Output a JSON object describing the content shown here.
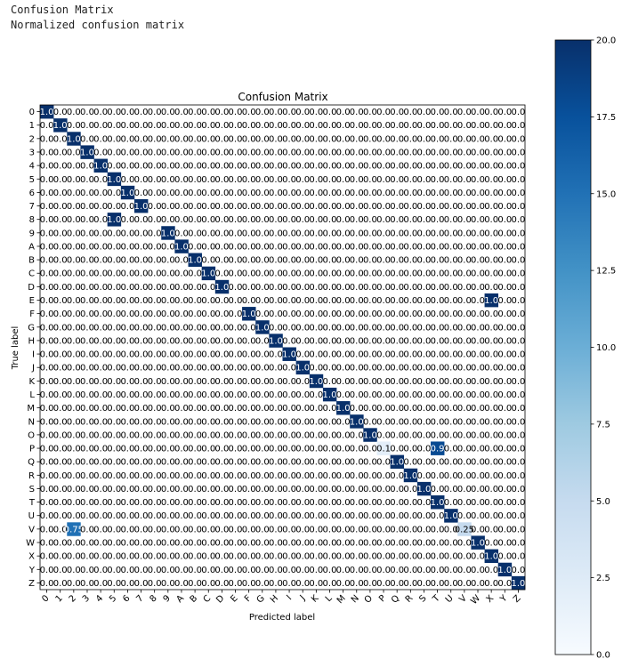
{
  "console": {
    "line1": "Confusion Matrix",
    "line2": "Normalized confusion matrix"
  },
  "chart_data": {
    "type": "heatmap",
    "title": "Confusion Matrix",
    "xlabel": "Predicted label",
    "ylabel": "True label",
    "labels": [
      "0",
      "1",
      "2",
      "3",
      "4",
      "5",
      "6",
      "7",
      "8",
      "9",
      "A",
      "B",
      "C",
      "D",
      "E",
      "F",
      "G",
      "H",
      "I",
      "J",
      "K",
      "L",
      "M",
      "N",
      "O",
      "P",
      "Q",
      "R",
      "S",
      "T",
      "U",
      "V",
      "W",
      "X",
      "Y",
      "Z"
    ],
    "default_cell_text": "0.0",
    "nonzero_cells": [
      {
        "row": 0,
        "col": 0,
        "value": 1.0,
        "text": "1.0"
      },
      {
        "row": 1,
        "col": 1,
        "value": 1.0,
        "text": "1.0"
      },
      {
        "row": 2,
        "col": 2,
        "value": 1.0,
        "text": "1.0"
      },
      {
        "row": 3,
        "col": 3,
        "value": 1.0,
        "text": "1.0"
      },
      {
        "row": 4,
        "col": 4,
        "value": 1.0,
        "text": "1.0"
      },
      {
        "row": 5,
        "col": 5,
        "value": 1.0,
        "text": "1.0"
      },
      {
        "row": 6,
        "col": 6,
        "value": 1.0,
        "text": "1.0"
      },
      {
        "row": 7,
        "col": 7,
        "value": 1.0,
        "text": "1.0"
      },
      {
        "row": 8,
        "col": 5,
        "value": 1.0,
        "text": "1.0"
      },
      {
        "row": 9,
        "col": 9,
        "value": 1.0,
        "text": "1.0"
      },
      {
        "row": 10,
        "col": 10,
        "value": 1.0,
        "text": "1.0"
      },
      {
        "row": 11,
        "col": 11,
        "value": 1.0,
        "text": "1.0"
      },
      {
        "row": 12,
        "col": 12,
        "value": 1.0,
        "text": "1.0"
      },
      {
        "row": 13,
        "col": 13,
        "value": 1.0,
        "text": "1.0"
      },
      {
        "row": 14,
        "col": 33,
        "value": 1.0,
        "text": "1.0"
      },
      {
        "row": 15,
        "col": 15,
        "value": 1.0,
        "text": "1.0"
      },
      {
        "row": 16,
        "col": 16,
        "value": 1.0,
        "text": "1.0"
      },
      {
        "row": 17,
        "col": 17,
        "value": 1.0,
        "text": "1.0"
      },
      {
        "row": 18,
        "col": 18,
        "value": 1.0,
        "text": "1.0"
      },
      {
        "row": 19,
        "col": 19,
        "value": 1.0,
        "text": "1.0"
      },
      {
        "row": 20,
        "col": 20,
        "value": 1.0,
        "text": "1.0"
      },
      {
        "row": 21,
        "col": 21,
        "value": 1.0,
        "text": "1.0"
      },
      {
        "row": 22,
        "col": 22,
        "value": 1.0,
        "text": "1.0"
      },
      {
        "row": 23,
        "col": 23,
        "value": 1.0,
        "text": "1.0"
      },
      {
        "row": 24,
        "col": 24,
        "value": 1.0,
        "text": "1.0"
      },
      {
        "row": 25,
        "col": 25,
        "value": 0.1,
        "text": "0.1"
      },
      {
        "row": 25,
        "col": 29,
        "value": 0.9,
        "text": "0.9"
      },
      {
        "row": 26,
        "col": 26,
        "value": 1.0,
        "text": "1.0"
      },
      {
        "row": 27,
        "col": 27,
        "value": 1.0,
        "text": "1.0"
      },
      {
        "row": 28,
        "col": 28,
        "value": 1.0,
        "text": "1.0"
      },
      {
        "row": 29,
        "col": 29,
        "value": 1.0,
        "text": "1.0"
      },
      {
        "row": 30,
        "col": 30,
        "value": 1.0,
        "text": "1.0"
      },
      {
        "row": 31,
        "col": 2,
        "value": 0.75,
        "text": "0.75"
      },
      {
        "row": 31,
        "col": 31,
        "value": 0.25,
        "text": "0.25"
      },
      {
        "row": 32,
        "col": 32,
        "value": 1.0,
        "text": "1.0"
      },
      {
        "row": 33,
        "col": 33,
        "value": 1.0,
        "text": "1.0"
      },
      {
        "row": 34,
        "col": 34,
        "value": 1.0,
        "text": "1.0"
      },
      {
        "row": 35,
        "col": 35,
        "value": 1.0,
        "text": "1.0"
      }
    ],
    "colorbar": {
      "min": 0.0,
      "max": 20.0,
      "ticks": [
        "0.0",
        "2.5",
        "5.0",
        "7.5",
        "10.0",
        "12.5",
        "15.0",
        "17.5",
        "20.0"
      ],
      "colormap": "Blues",
      "low_color": "#f7fbff",
      "high_color": "#08306b"
    },
    "grid": false
  }
}
